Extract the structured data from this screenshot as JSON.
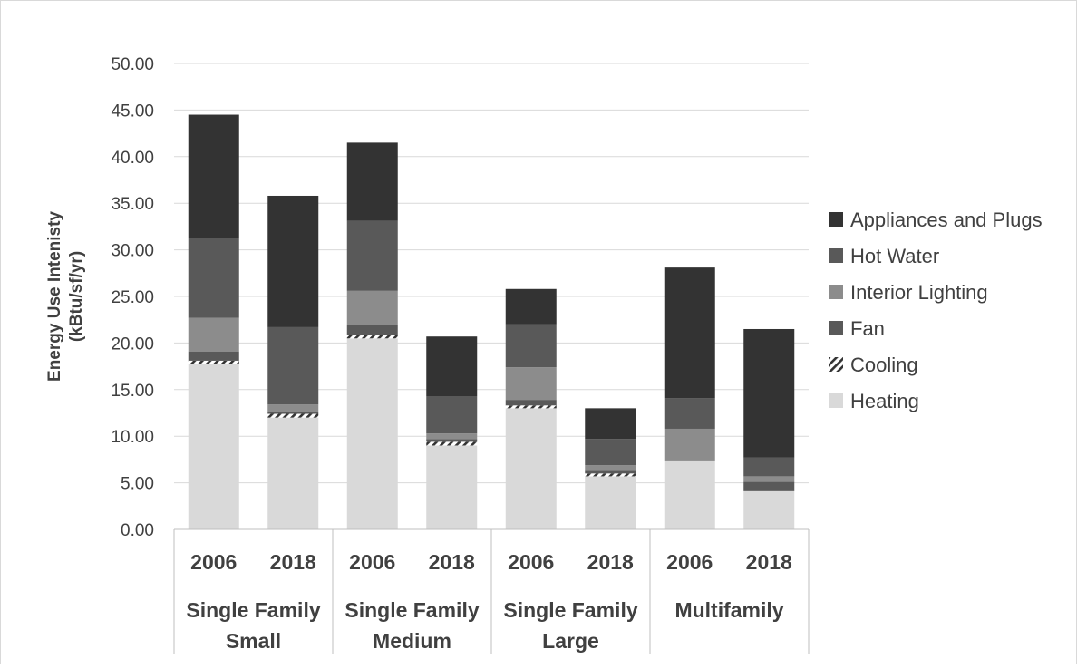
{
  "chart_data": {
    "type": "bar",
    "stacked": true,
    "title": "",
    "xlabel": "",
    "ylabel": "Energy Use Intenisty\n(kBtu/sf/yr)",
    "ylim": [
      0,
      50
    ],
    "yticks": [
      "0.00",
      "5.00",
      "10.00",
      "15.00",
      "20.00",
      "25.00",
      "30.00",
      "35.00",
      "40.00",
      "45.00",
      "50.00"
    ],
    "grid": "horizontal",
    "legend_position": "right",
    "groups": [
      {
        "label": [
          "Single Family",
          "Small"
        ],
        "categories": [
          "2006",
          "2018"
        ]
      },
      {
        "label": [
          "Single Family",
          "Medium"
        ],
        "categories": [
          "2006",
          "2018"
        ]
      },
      {
        "label": [
          "Single Family",
          "Large"
        ],
        "categories": [
          "2006",
          "2018"
        ]
      },
      {
        "label": [
          "Multifamily"
        ],
        "categories": [
          "2006",
          "2018"
        ]
      }
    ],
    "categories": [
      "Single Family Small 2006",
      "Single Family Small 2018",
      "Single Family Medium 2006",
      "Single Family Medium 2018",
      "Single Family Large 2006",
      "Single Family Large 2018",
      "Multifamily 2006",
      "Multifamily 2018"
    ],
    "series": [
      {
        "name": "Heating",
        "color": "#d9d9d9",
        "pattern": "solid",
        "values": [
          17.8,
          12.0,
          20.5,
          9.0,
          13.0,
          5.7,
          7.4,
          4.1
        ]
      },
      {
        "name": "Cooling",
        "color": "#ffffff",
        "pattern": "diagonal-hatch",
        "values": [
          0.3,
          0.4,
          0.4,
          0.4,
          0.3,
          0.3,
          0.0,
          0.0
        ]
      },
      {
        "name": "Fan",
        "color": "#595959",
        "pattern": "solid",
        "values": [
          1.0,
          0.2,
          1.0,
          0.3,
          0.6,
          0.3,
          0.0,
          1.0
        ]
      },
      {
        "name": "Interior Lighting",
        "color": "#8c8c8c",
        "pattern": "solid",
        "values": [
          3.6,
          0.8,
          3.7,
          0.6,
          3.5,
          0.6,
          3.4,
          0.6
        ]
      },
      {
        "name": "Hot Water",
        "color": "#595959",
        "pattern": "solid",
        "values": [
          8.6,
          8.3,
          7.5,
          4.0,
          4.6,
          2.8,
          3.3,
          2.0
        ]
      },
      {
        "name": "Appliances and Plugs",
        "color": "#333333",
        "pattern": "solid",
        "values": [
          13.2,
          14.1,
          8.4,
          6.4,
          3.8,
          3.3,
          14.0,
          13.8
        ]
      }
    ],
    "legend": [
      "Appliances and Plugs",
      "Hot Water",
      "Interior Lighting",
      "Fan",
      "Cooling",
      "Heating"
    ]
  }
}
